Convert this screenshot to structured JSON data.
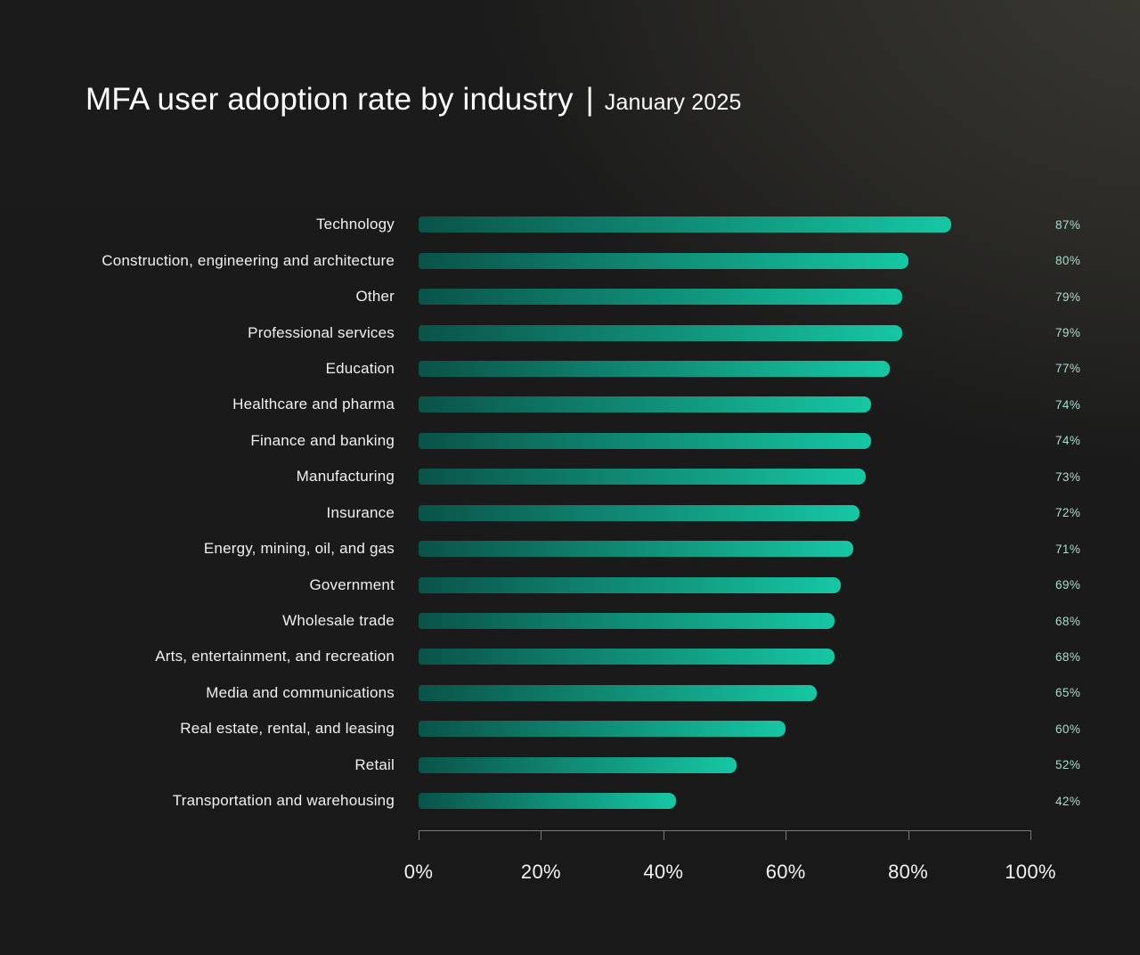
{
  "header": {
    "title": "MFA user adoption rate by industry",
    "separator": "|",
    "subtitle": "January 2025"
  },
  "chart_data": {
    "type": "bar",
    "orientation": "horizontal",
    "title": "MFA user adoption rate by industry",
    "subtitle": "January 2025",
    "categories": [
      "Technology",
      "Construction, engineering and architecture",
      "Other",
      "Professional services",
      "Education",
      "Healthcare and pharma",
      "Finance and banking",
      "Manufacturing",
      "Insurance",
      "Energy, mining, oil, and gas",
      "Government",
      "Wholesale trade",
      "Arts, entertainment, and recreation",
      "Media and communications",
      "Real estate, rental, and leasing",
      "Retail",
      "Transportation and warehousing"
    ],
    "values": [
      87,
      80,
      79,
      79,
      77,
      74,
      74,
      73,
      72,
      71,
      69,
      68,
      68,
      65,
      60,
      52,
      42
    ],
    "value_labels": [
      "87%",
      "80%",
      "79%",
      "79%",
      "77%",
      "74%",
      "74%",
      "73%",
      "72%",
      "71%",
      "69%",
      "68%",
      "68%",
      "65%",
      "60%",
      "52%",
      "42%"
    ],
    "value_suffix": "%",
    "xlabel": "",
    "ylabel": "",
    "xlim": [
      0,
      100
    ],
    "x_ticks": [
      0,
      20,
      40,
      60,
      80,
      100
    ],
    "x_tick_labels": [
      "0%",
      "20%",
      "40%",
      "60%",
      "80%",
      "100%"
    ],
    "grid": false,
    "legend": false
  },
  "colors": {
    "bar_gradient_start": "#0a5348",
    "bar_gradient_end": "#16c7a4",
    "value_label": "#aaddd1",
    "category_label": "#f0f0f0",
    "tick_label": "#f2f2f2",
    "axis_line": "#787878",
    "title_text": "#ffffff"
  }
}
